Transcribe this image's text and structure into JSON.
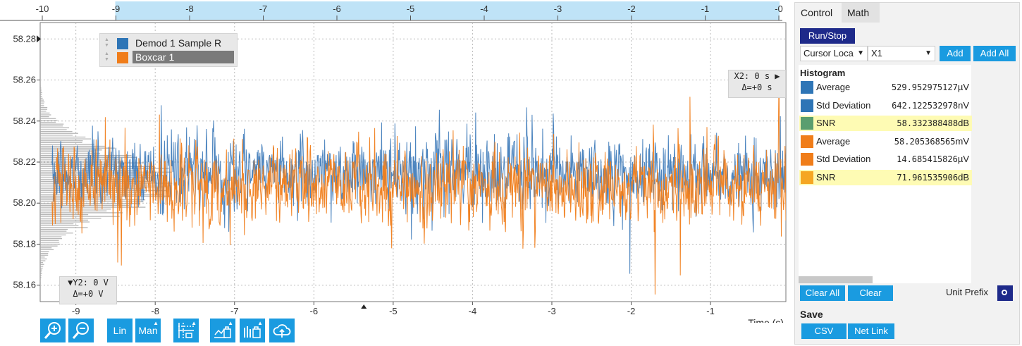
{
  "overview": {
    "ticks": [
      "-10",
      "-9",
      "-8",
      "-7",
      "-6",
      "-5",
      "-4",
      "-3",
      "-2",
      "-1",
      "-0"
    ],
    "window": [
      -9,
      0
    ]
  },
  "chart_data": {
    "type": "line",
    "xlabel": "Time (s)",
    "xlim": [
      -9.45,
      -0.05
    ],
    "ylim": [
      58.152,
      58.288
    ],
    "x_ticks": [
      "-9",
      "-8",
      "-7",
      "-6",
      "-5",
      "-4",
      "-3",
      "-2",
      "-1"
    ],
    "y_ticks": [
      "58.28",
      "58.26",
      "58.24",
      "58.22",
      "58.20",
      "58.18",
      "58.16"
    ],
    "series": [
      {
        "name": "Demod 1 Sample R",
        "color": "#3a78b8",
        "mean": 58.215,
        "std": 0.0125,
        "range": [
          58.163,
          58.257
        ],
        "x_range": [
          -9.3,
          -0.05
        ]
      },
      {
        "name": "Boxcar 1",
        "color": "#f07d1a",
        "mean": 58.208,
        "std": 0.0135,
        "range": [
          58.155,
          58.266
        ],
        "x_range": [
          -9.3,
          -0.05
        ]
      }
    ],
    "histogram": {
      "color": "#aaaaaa",
      "center": 58.21,
      "spread": 0.015,
      "y_range": [
        58.162,
        58.258
      ]
    }
  },
  "legend": {
    "items": [
      "Demod 1 Sample R",
      "Boxcar 1"
    ],
    "selected": 1
  },
  "cursors": {
    "x2_label": "X2: 0 s",
    "x2_delta": "Δ=+0 s",
    "y2_label": "Y2: 0 V",
    "y2_delta": "Δ=+0 V"
  },
  "toolbar": {
    "zoom_in": "zoom-in-icon",
    "zoom_out": "zoom-out-icon",
    "lin_label": "Lin",
    "man_label": "Man",
    "cursor_icon": "cursor-grid-icon",
    "save_icon": "save-plot-icon",
    "export_icon": "export-icon",
    "cloud_icon": "cloud-upload-icon"
  },
  "panel": {
    "tabs": [
      "Control",
      "Math"
    ],
    "active_tab": 1,
    "run_stop": "Run/Stop",
    "cursor_select": "Cursor Loca",
    "cursor_select_value": "X1",
    "add": "Add",
    "add_all": "Add All",
    "histogram_title": "Histogram",
    "rows": [
      {
        "label": "Average",
        "value": "529.952975127",
        "unit": "µV",
        "color": "#2e75b6",
        "hl": false
      },
      {
        "label": "Std Deviation",
        "value": "642.122532978",
        "unit": "nV",
        "color": "#2e75b6",
        "hl": false
      },
      {
        "label": "SNR",
        "value": "58.332388488",
        "unit": "dB",
        "color": "#5a9e6f",
        "hl": true
      },
      {
        "label": "Average",
        "value": "58.205368565",
        "unit": "mV",
        "color": "#f07d1a",
        "hl": false
      },
      {
        "label": "Std Deviation",
        "value": "14.685415826",
        "unit": "µV",
        "color": "#f07d1a",
        "hl": false
      },
      {
        "label": "SNR",
        "value": "71.961535906",
        "unit": "dB",
        "color": "#f5a623",
        "hl": true
      }
    ],
    "clear_all": "Clear All",
    "clear": "Clear",
    "unit_prefix": "Unit Prefix",
    "save_title": "Save",
    "csv": "CSV",
    "net_link": "Net Link"
  }
}
